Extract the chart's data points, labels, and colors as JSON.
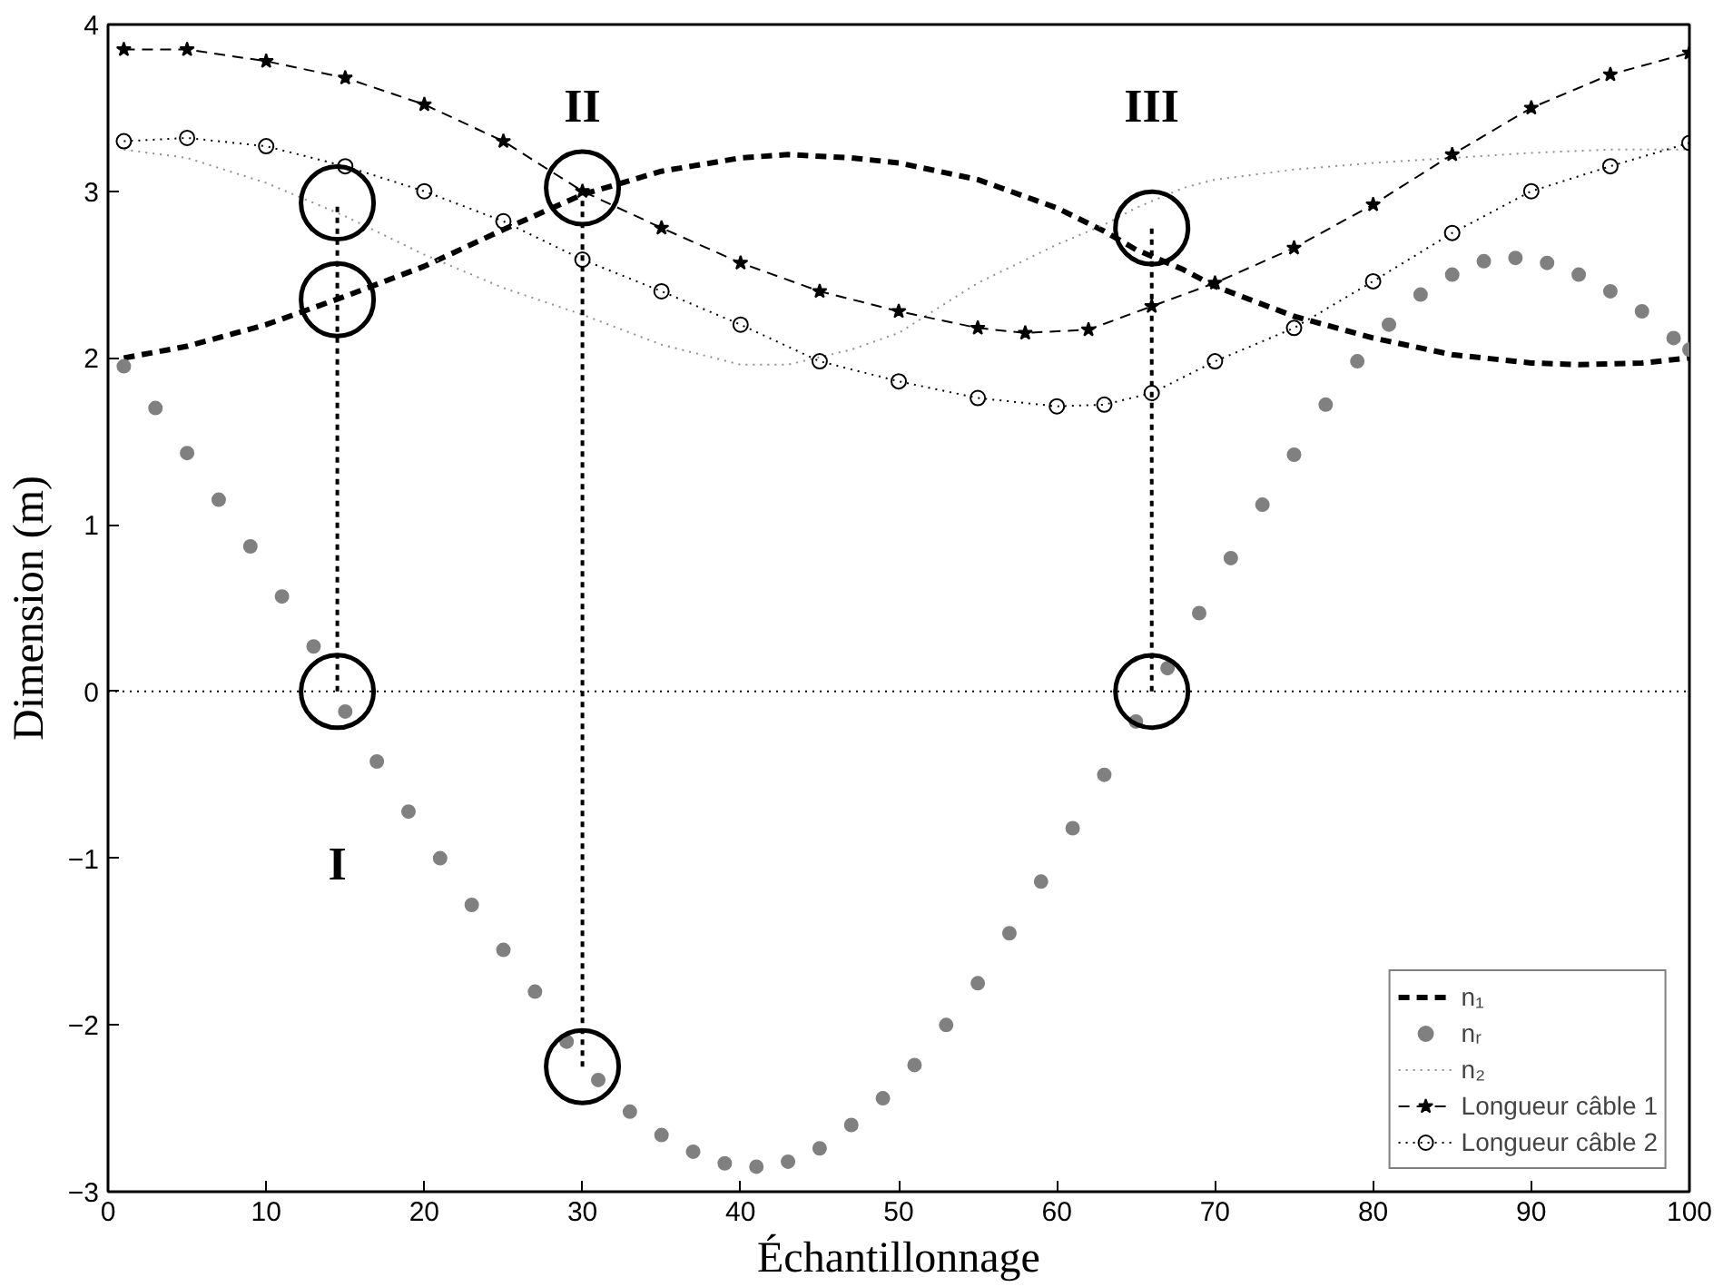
{
  "chart_data": {
    "type": "line",
    "xlabel": "Échantillonnage",
    "ylabel": "Dimension (m)",
    "xlim": [
      0,
      100
    ],
    "ylim": [
      -3,
      4
    ],
    "xticks": [
      0,
      10,
      20,
      30,
      40,
      50,
      60,
      70,
      80,
      90,
      100
    ],
    "yticks": [
      -3,
      -2,
      -1,
      0,
      1,
      2,
      3,
      4
    ],
    "grid": false,
    "legend": "bottom right",
    "ref_lines": [
      {
        "axis": "y",
        "value": 0,
        "line_style": "dotted",
        "color": "#000000"
      }
    ],
    "annotations": [
      "I",
      "II",
      "III"
    ],
    "series": [
      {
        "name": "n₁",
        "color": "#000000",
        "line_style": "dashed",
        "marker": "none",
        "x": [
          1,
          5,
          10,
          15,
          20,
          25,
          30,
          35,
          40,
          43,
          47,
          50,
          55,
          60,
          63,
          65,
          68,
          70,
          75,
          80,
          85,
          90,
          93,
          97,
          100
        ],
        "values": [
          2.0,
          2.07,
          2.2,
          2.37,
          2.55,
          2.77,
          2.98,
          3.12,
          3.2,
          3.22,
          3.2,
          3.17,
          3.07,
          2.9,
          2.76,
          2.65,
          2.53,
          2.43,
          2.25,
          2.12,
          2.02,
          1.97,
          1.96,
          1.97,
          2.0
        ]
      },
      {
        "name": "nᵣ",
        "type": "scatter",
        "color": "#808080",
        "marker": "circle",
        "x": [
          1,
          3,
          5,
          7,
          9,
          11,
          13,
          15,
          17,
          19,
          21,
          23,
          25,
          27,
          29,
          31,
          33,
          35,
          37,
          39,
          41,
          43,
          45,
          47,
          49,
          51,
          53,
          55,
          57,
          59,
          61,
          63,
          65,
          67,
          69,
          71,
          73,
          75,
          77,
          79,
          81,
          83,
          85,
          87,
          89,
          91,
          93,
          95,
          97,
          99,
          100
        ],
        "values": [
          1.95,
          1.7,
          1.43,
          1.15,
          0.87,
          0.57,
          0.27,
          -0.12,
          -0.42,
          -0.72,
          -1.0,
          -1.28,
          -1.55,
          -1.8,
          -2.1,
          -2.33,
          -2.52,
          -2.66,
          -2.76,
          -2.83,
          -2.85,
          -2.82,
          -2.74,
          -2.6,
          -2.44,
          -2.24,
          -2.0,
          -1.75,
          -1.45,
          -1.14,
          -0.82,
          -0.5,
          -0.18,
          0.14,
          0.47,
          0.8,
          1.12,
          1.42,
          1.72,
          1.98,
          2.2,
          2.38,
          2.5,
          2.58,
          2.6,
          2.57,
          2.5,
          2.4,
          2.28,
          2.12,
          2.05
        ]
      },
      {
        "name": "n₂",
        "color": "#909090",
        "line_style": "dotted",
        "marker": "none",
        "x": [
          1,
          5,
          10,
          15,
          20,
          25,
          30,
          35,
          40,
          43,
          47,
          50,
          52,
          55,
          60,
          63,
          65,
          68,
          70,
          75,
          80,
          85,
          90,
          95,
          100
        ],
        "values": [
          3.25,
          3.2,
          3.05,
          2.85,
          2.62,
          2.42,
          2.26,
          2.08,
          1.96,
          1.96,
          2.05,
          2.15,
          2.27,
          2.45,
          2.68,
          2.8,
          2.9,
          3.02,
          3.07,
          3.13,
          3.17,
          3.2,
          3.23,
          3.25,
          3.25
        ]
      },
      {
        "name": "Longueur câble 1",
        "color": "#000000",
        "line_style": "dashed",
        "marker": "star",
        "x": [
          1,
          5,
          10,
          15,
          20,
          25,
          30,
          35,
          40,
          45,
          50,
          55,
          58,
          62,
          66,
          70,
          75,
          80,
          85,
          90,
          95,
          100
        ],
        "values": [
          3.85,
          3.85,
          3.78,
          3.68,
          3.52,
          3.3,
          3.0,
          2.78,
          2.57,
          2.4,
          2.28,
          2.18,
          2.15,
          2.17,
          2.31,
          2.45,
          2.66,
          2.92,
          3.22,
          3.5,
          3.7,
          3.83
        ]
      },
      {
        "name": "Longueur câble 2",
        "color": "#000000",
        "line_style": "dotted",
        "marker": "circle",
        "x": [
          1,
          5,
          10,
          15,
          20,
          25,
          30,
          35,
          40,
          45,
          50,
          55,
          60,
          63,
          66,
          70,
          75,
          80,
          85,
          90,
          95,
          100
        ],
        "values": [
          3.3,
          3.32,
          3.27,
          3.15,
          3.0,
          2.82,
          2.59,
          2.4,
          2.2,
          1.98,
          1.86,
          1.76,
          1.71,
          1.72,
          1.79,
          1.98,
          2.18,
          2.46,
          2.75,
          3.0,
          3.15,
          3.29
        ]
      },
      {
        "color": "#000000",
        "line_style": "dashed",
        "marker": "circle",
        "x": [
          14.5,
          14.5,
          14.5
        ],
        "values": [
          0,
          2.35,
          2.93
        ]
      },
      {
        "color": "#000000",
        "line_style": "dashed",
        "marker": "circle",
        "x": [
          30,
          30
        ],
        "values": [
          -2.25,
          3.02
        ]
      },
      {
        "color": "#000000",
        "line_style": "dashed",
        "marker": "circle",
        "x": [
          66,
          66
        ],
        "values": [
          0,
          2.78
        ]
      }
    ]
  }
}
